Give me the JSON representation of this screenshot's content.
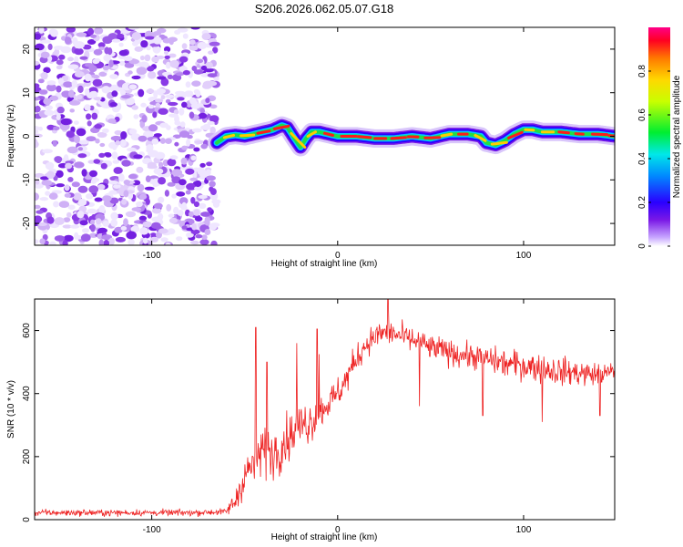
{
  "figure_title": "S206.2026.062.05.07.G18",
  "chart_data": [
    {
      "type": "heatmap",
      "name": "spectrogram",
      "title": "S206.2026.062.05.07.G18",
      "xlabel": "Height of straight line (km)",
      "ylabel": "Frequency (Hz)",
      "xlim": [
        -163,
        149
      ],
      "ylim": [
        -25,
        25
      ],
      "x_ticks": [
        -100,
        0,
        100
      ],
      "y_ticks": [
        -20,
        -10,
        0,
        10,
        20
      ],
      "colorbar": {
        "label": "Normalized spectral amplitude",
        "range": [
          0,
          1
        ],
        "ticks": [
          0.0,
          0.2,
          0.4,
          0.6,
          0.8
        ]
      },
      "noise_region_x": [
        -163,
        -65
      ],
      "ridge": {
        "x": [
          -65,
          -60,
          -55,
          -50,
          -45,
          -40,
          -35,
          -30,
          -27,
          -24,
          -20,
          -17,
          -14,
          -10,
          -5,
          0,
          10,
          20,
          30,
          40,
          50,
          60,
          70,
          77,
          80,
          85,
          90,
          95,
          100,
          105,
          110,
          120,
          130,
          140,
          149
        ],
        "freq": [
          -1.5,
          0.0,
          0.3,
          0.0,
          0.5,
          1.0,
          1.5,
          2.5,
          2.0,
          0.0,
          -2.5,
          -0.5,
          1.0,
          1.0,
          0.5,
          0.0,
          0.0,
          -0.5,
          -0.5,
          0.0,
          -0.5,
          0.5,
          0.5,
          0.0,
          -1.5,
          -2.0,
          -1.0,
          0.5,
          1.5,
          1.5,
          1.0,
          1.0,
          0.5,
          0.5,
          0.0
        ]
      }
    },
    {
      "type": "line",
      "name": "snr",
      "xlabel": "Height of straight line (km)",
      "ylabel": "SNR (10 * v/v)",
      "xlim": [
        -163,
        149
      ],
      "ylim": [
        0,
        700
      ],
      "x_ticks": [
        -100,
        0,
        100
      ],
      "y_ticks": [
        0,
        200,
        400,
        600
      ],
      "series": [
        {
          "name": "SNR",
          "color": "#ee2222",
          "x": [
            -163,
            -140,
            -120,
            -100,
            -80,
            -60,
            -55,
            -50,
            -45,
            -40,
            -35,
            -30,
            -25,
            -20,
            -15,
            -10,
            -5,
            0,
            5,
            10,
            15,
            20,
            25,
            30,
            35,
            40,
            45,
            50,
            55,
            60,
            70,
            80,
            90,
            100,
            110,
            120,
            130,
            140,
            149
          ],
          "mean": [
            22,
            22,
            22,
            22,
            22,
            25,
            60,
            140,
            180,
            220,
            210,
            240,
            270,
            300,
            310,
            340,
            370,
            400,
            450,
            510,
            555,
            580,
            595,
            590,
            580,
            570,
            560,
            545,
            540,
            530,
            520,
            510,
            495,
            490,
            480,
            470,
            465,
            460,
            470
          ],
          "noise": [
            10,
            10,
            10,
            10,
            10,
            10,
            40,
            60,
            70,
            80,
            80,
            80,
            70,
            70,
            70,
            60,
            50,
            50,
            50,
            45,
            40,
            40,
            40,
            40,
            40,
            40,
            40,
            40,
            40,
            40,
            40,
            40,
            45,
            45,
            45,
            45,
            40,
            35,
            30
          ],
          "spikes": [
            {
              "x": -44,
              "y": 610
            },
            {
              "x": -38,
              "y": 500
            },
            {
              "x": -22,
              "y": 560
            },
            {
              "x": -11,
              "y": 605
            },
            {
              "x": -10,
              "y": 525
            },
            {
              "x": 27,
              "y": 700
            },
            {
              "x": 44,
              "y": 360
            },
            {
              "x": 78,
              "y": 330
            },
            {
              "x": 110,
              "y": 310
            },
            {
              "x": 141,
              "y": 330
            }
          ]
        }
      ]
    }
  ]
}
